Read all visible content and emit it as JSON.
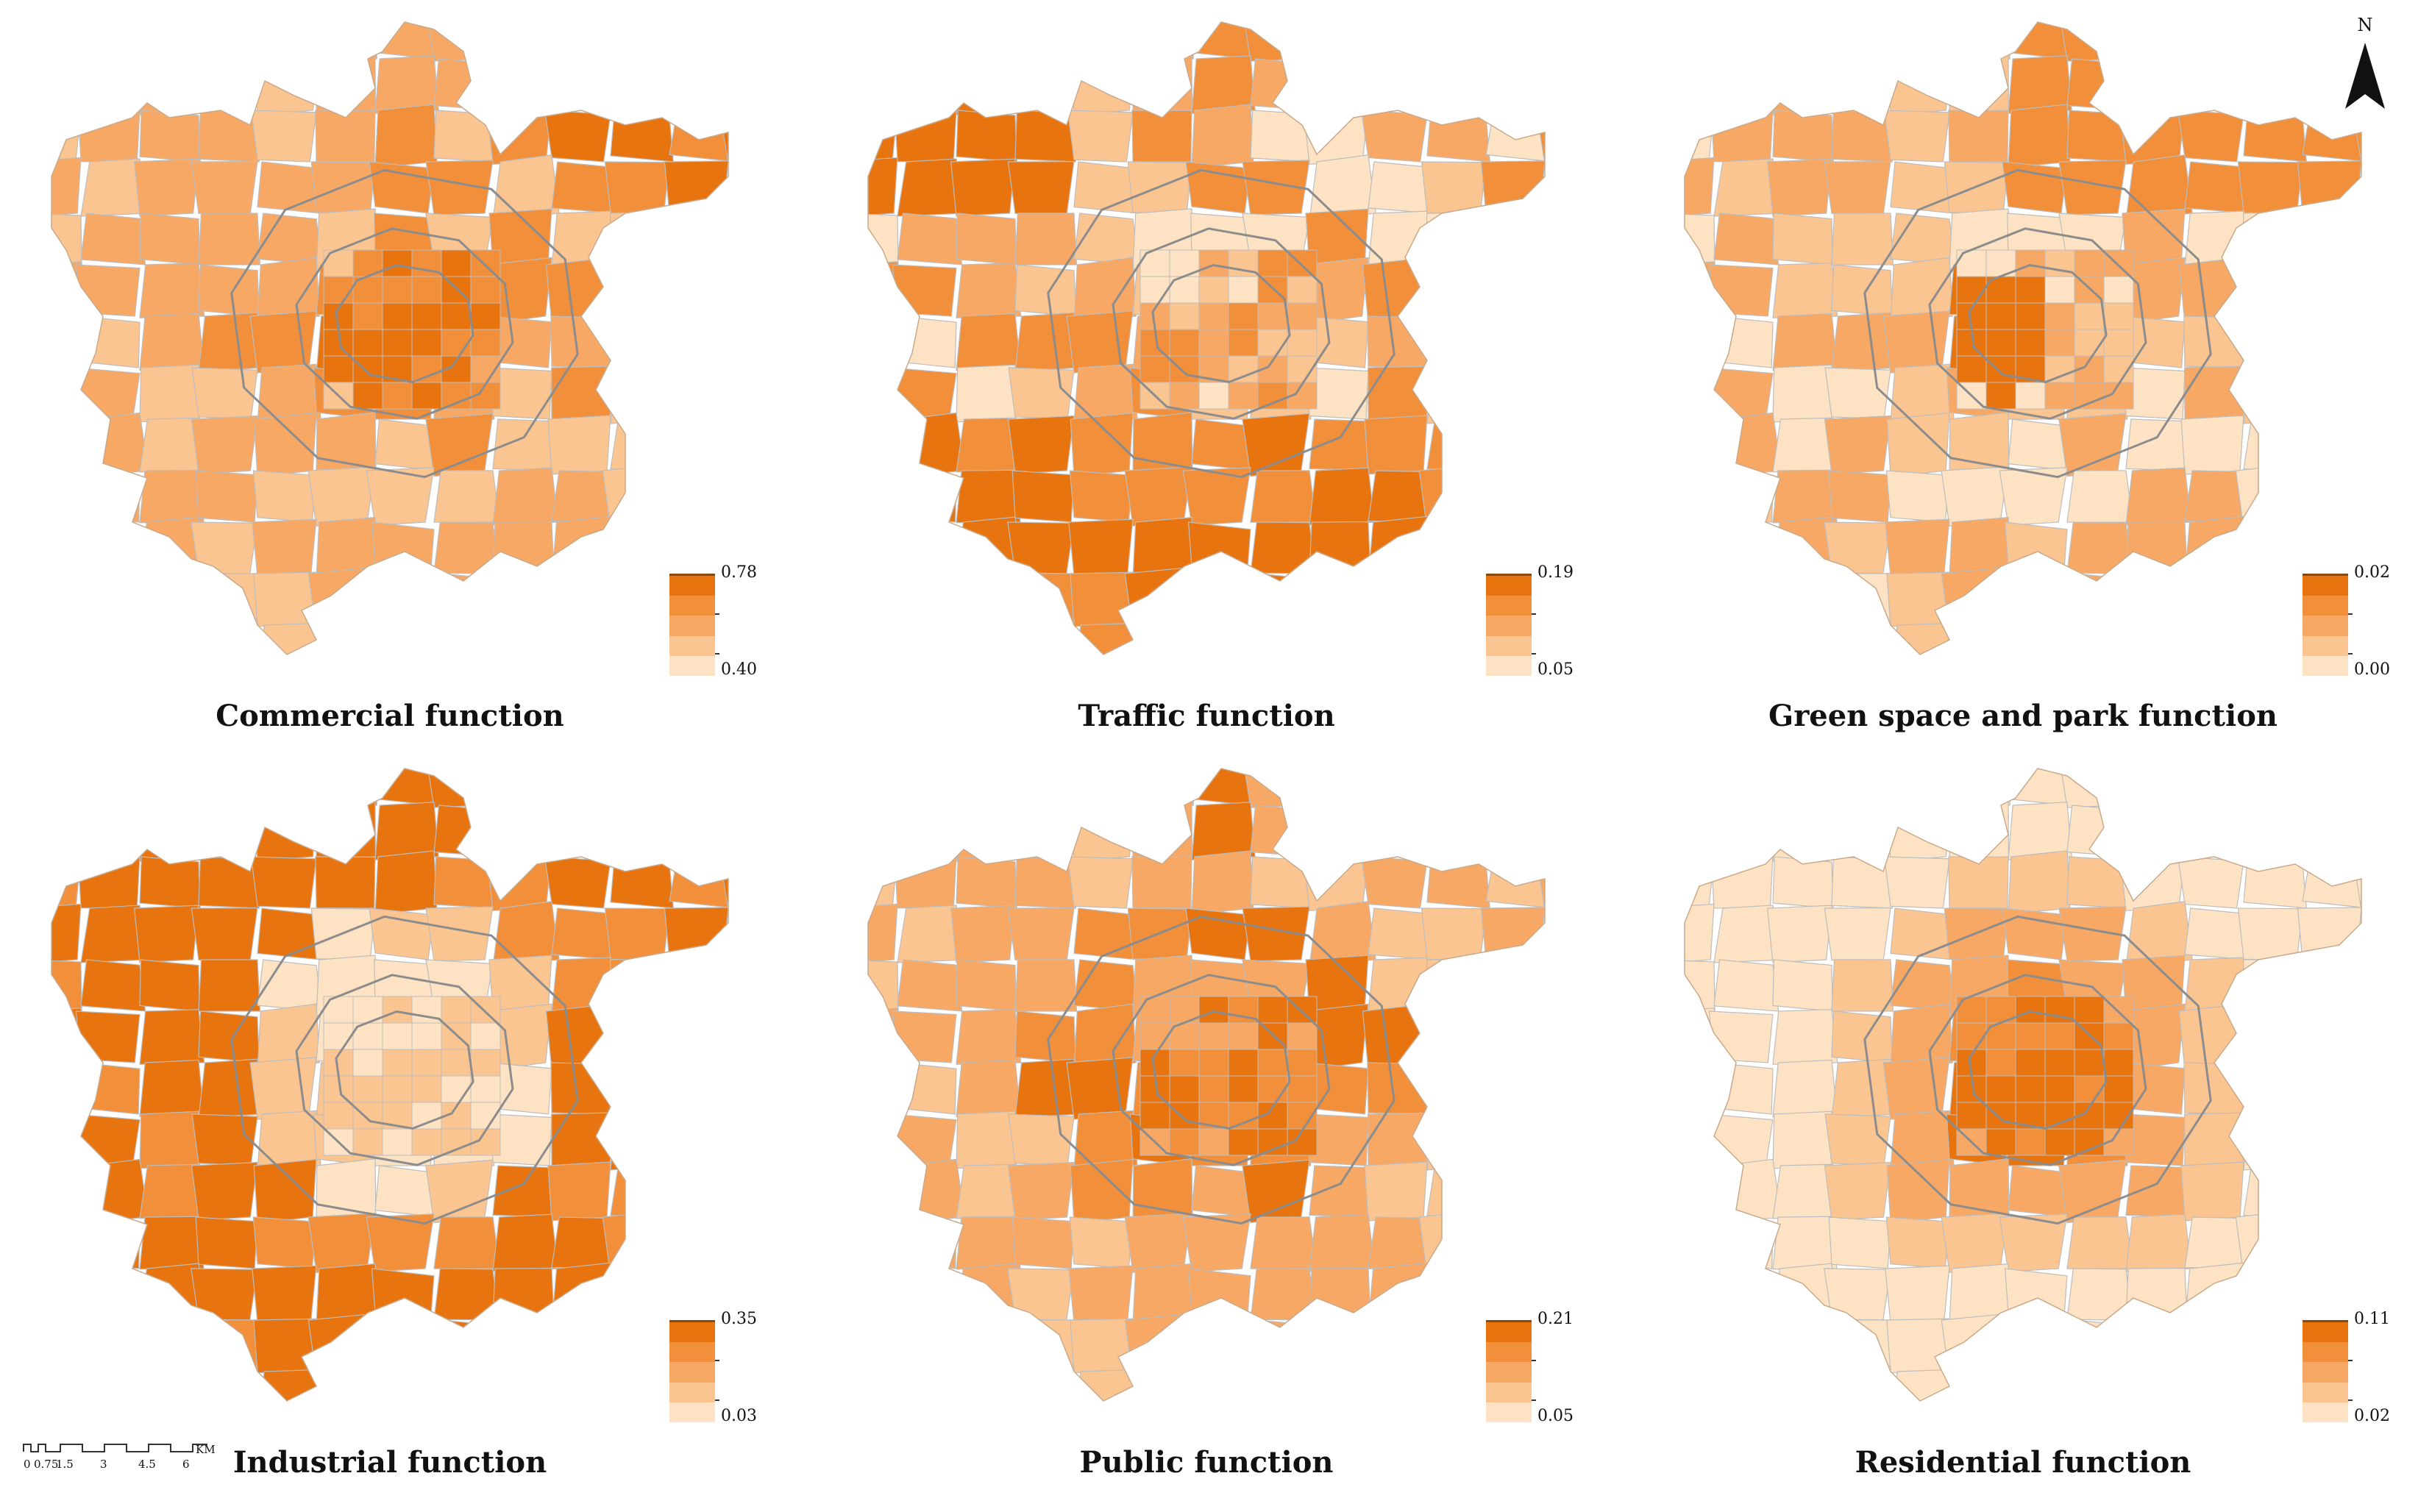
{
  "panels": [
    {
      "title": "Commercial function",
      "legend_max": "0.78",
      "legend_min": "0.40"
    },
    {
      "title": "Traffic function",
      "legend_max": "0.19",
      "legend_min": "0.05"
    },
    {
      "title": "Green space and park function",
      "legend_max": "0.02",
      "legend_min": "0.00"
    },
    {
      "title": "Industrial function",
      "legend_max": "0.35",
      "legend_min": "0.03"
    },
    {
      "title": "Public function",
      "legend_max": "0.21",
      "legend_min": "0.05"
    },
    {
      "title": "Residential function",
      "legend_max": "0.11",
      "legend_min": "0.02"
    }
  ],
  "north_label": "N",
  "scalebar": {
    "ticks": [
      "0",
      "0.75",
      "1.5",
      "3",
      "4.5",
      "6"
    ],
    "unit": "KM"
  },
  "colors": {
    "ramp": [
      "#e8740f",
      "#f28f3b",
      "#f7a865",
      "#fbc592",
      "#fde3c4"
    ],
    "ring_road": "#8c8c8c",
    "district_border": "#bdbdbd"
  }
}
